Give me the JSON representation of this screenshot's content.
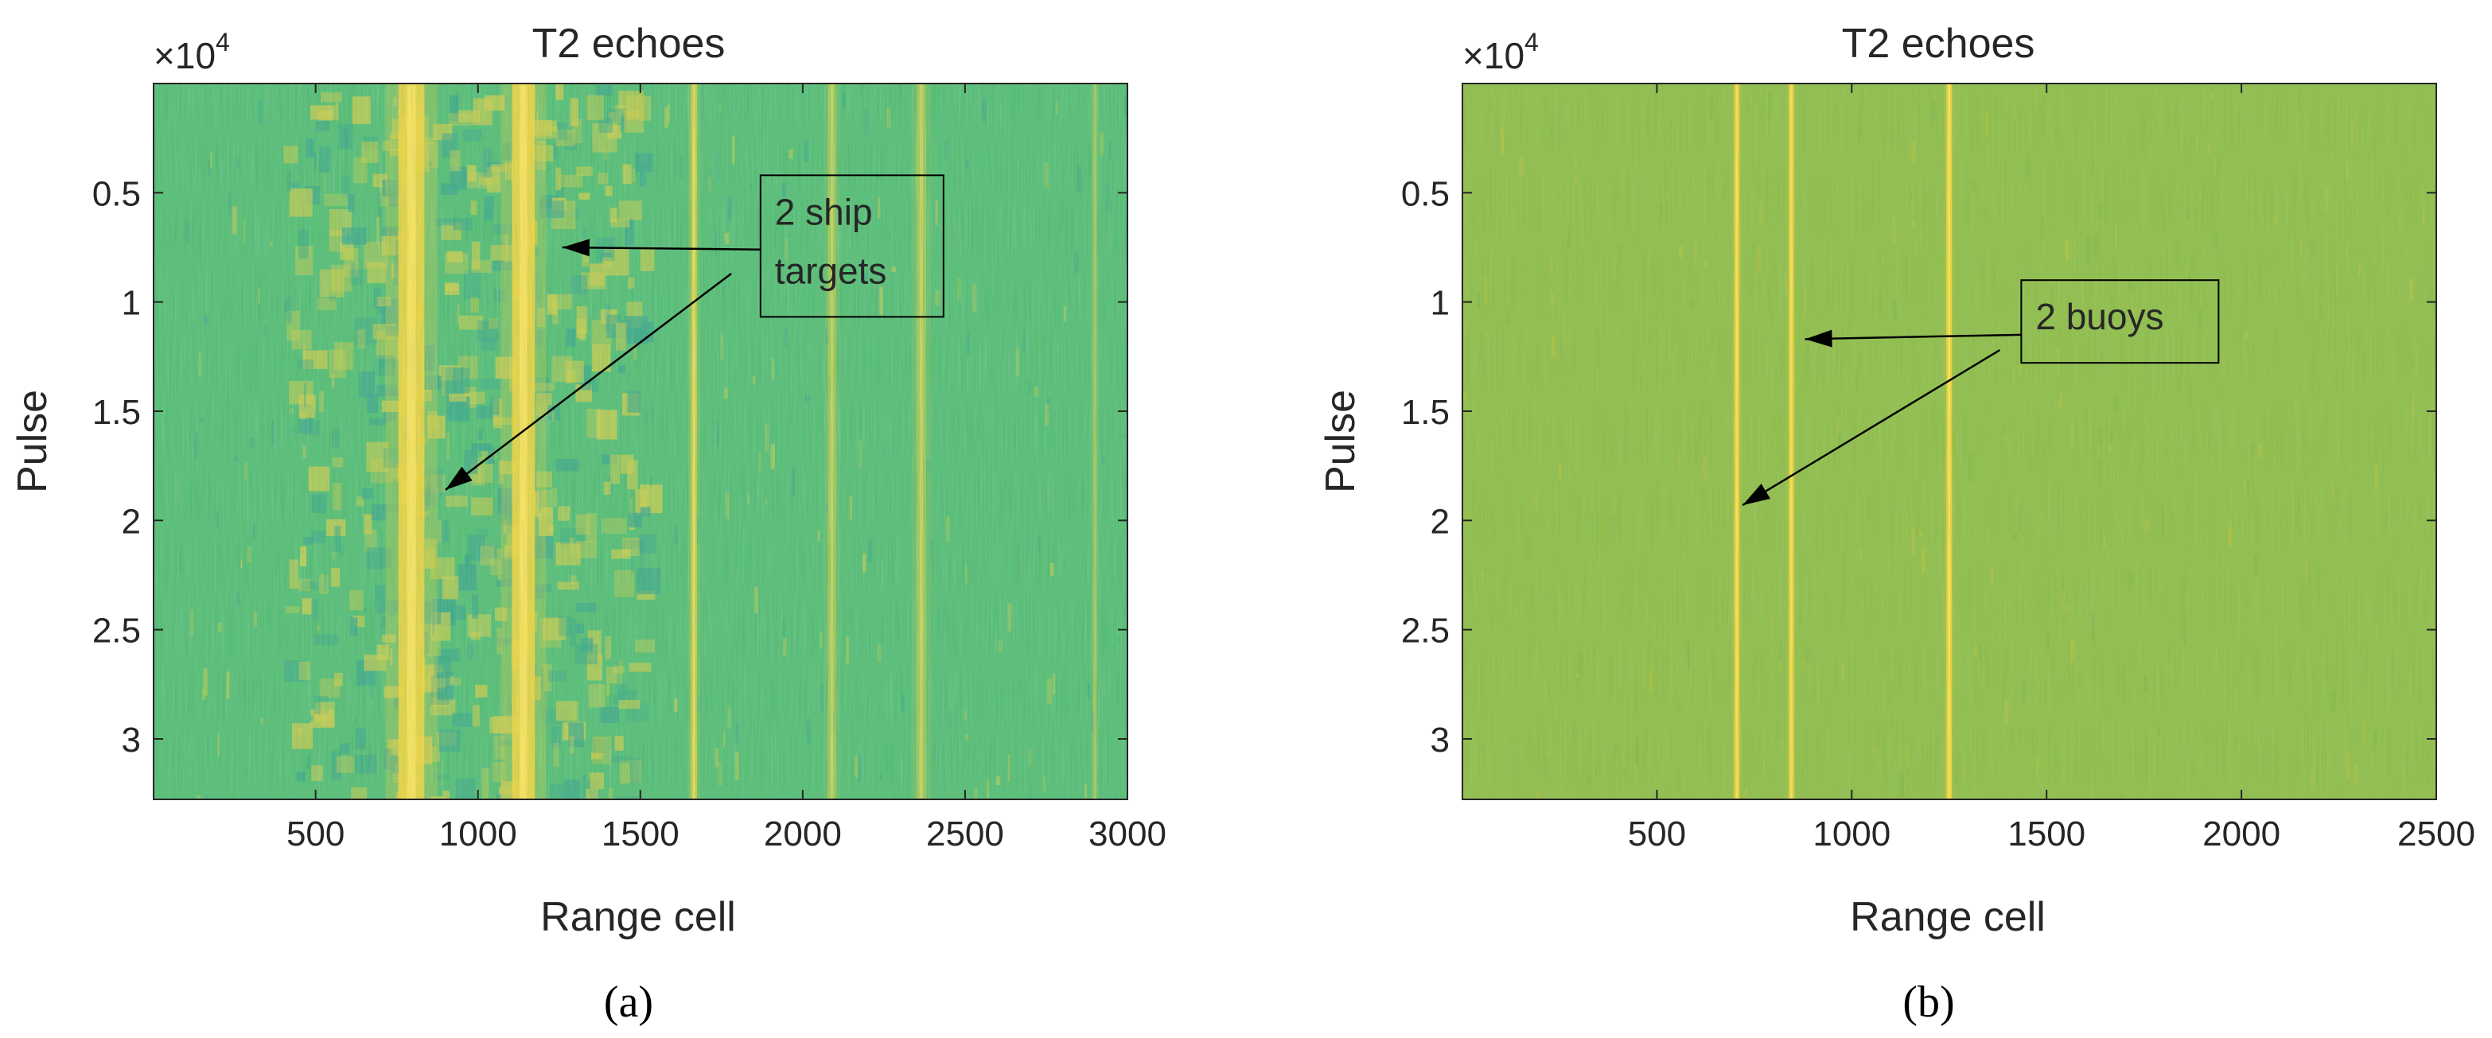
{
  "chart_data": [
    {
      "type": "heatmap",
      "panel_label": "(a)",
      "title": "T2 echoes",
      "xlabel": "Range cell",
      "ylabel": "Pulse",
      "y_multiplier": "×10",
      "y_multiplier_exponent": "4",
      "xlim": [
        1,
        3000
      ],
      "ylim": [
        0,
        32768
      ],
      "y_reversed": true,
      "xticks": [
        500,
        1000,
        1500,
        2000,
        2500,
        3000
      ],
      "xtick_labels": [
        "500",
        "1000",
        "1500",
        "2000",
        "2500",
        "3000"
      ],
      "yticks": [
        5000,
        10000,
        15000,
        20000,
        25000,
        30000
      ],
      "ytick_labels": [
        "0.5",
        "1",
        "1.5",
        "2",
        "2.5",
        "3"
      ],
      "colors": {
        "background": "#4fbf72",
        "bright": "#f5d83a",
        "mid": "#c9cf4a",
        "dark": "#35a888"
      },
      "bright_lines": [
        {
          "x": 795,
          "intensity": 1.0,
          "width_cells": 80
        },
        {
          "x": 1140,
          "intensity": 1.0,
          "width_cells": 70
        },
        {
          "x": 1665,
          "intensity": 0.75,
          "width_cells": 18
        },
        {
          "x": 2090,
          "intensity": 0.45,
          "width_cells": 25
        },
        {
          "x": 2365,
          "intensity": 0.45,
          "width_cells": 30
        },
        {
          "x": 2900,
          "intensity": 0.3,
          "width_cells": 15
        }
      ],
      "clutter_band": [
        400,
        1500
      ],
      "annotation": {
        "text_lines": [
          "2 ship",
          "targets"
        ],
        "box_x": 1870,
        "box_y": 4200,
        "arrows": [
          {
            "from_x": 1870,
            "from_y": 7600,
            "to_x": 1260,
            "to_y": 7500
          },
          {
            "from_x": 1780,
            "from_y": 8700,
            "to_x": 900,
            "to_y": 18600
          }
        ]
      }
    },
    {
      "type": "heatmap",
      "panel_label": "(b)",
      "title": "T2 echoes",
      "xlabel": "Range cell",
      "ylabel": "Pulse",
      "y_multiplier": "×10",
      "y_multiplier_exponent": "4",
      "xlim": [
        1,
        2500
      ],
      "ylim": [
        0,
        32768
      ],
      "y_reversed": true,
      "xticks": [
        500,
        1000,
        1500,
        2000,
        2500
      ],
      "xtick_labels": [
        "500",
        "1000",
        "1500",
        "2000",
        "2500"
      ],
      "yticks": [
        5000,
        10000,
        15000,
        20000,
        25000,
        30000
      ],
      "ytick_labels": [
        "0.5",
        "1",
        "1.5",
        "2",
        "2.5",
        "3"
      ],
      "colors": {
        "background": "#8fbf4a",
        "bright": "#f5d83a",
        "mid": "#b4c440",
        "dark": "#7fb848"
      },
      "bright_lines": [
        {
          "x": 705,
          "intensity": 0.9,
          "width_cells": 14
        },
        {
          "x": 845,
          "intensity": 0.85,
          "width_cells": 14
        },
        {
          "x": 1250,
          "intensity": 1.0,
          "width_cells": 14
        }
      ],
      "annotation": {
        "text_lines": [
          "2 buoys"
        ],
        "box_x": 1435,
        "box_y": 9000,
        "arrows": [
          {
            "from_x": 1435,
            "from_y": 11500,
            "to_x": 880,
            "to_y": 11700
          },
          {
            "from_x": 1380,
            "from_y": 12200,
            "to_x": 720,
            "to_y": 19300
          }
        ]
      }
    }
  ]
}
